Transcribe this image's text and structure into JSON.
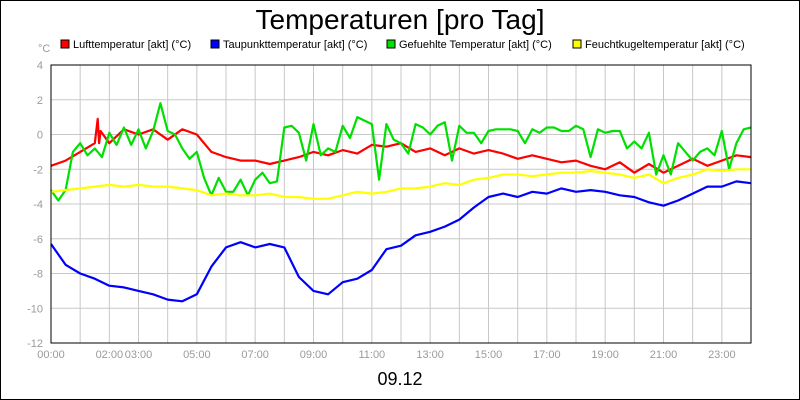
{
  "chart_data": {
    "type": "line",
    "title": "Temperaturen [pro Tag]",
    "y_unit": "°C",
    "xlabel": "09.12",
    "ylim": [
      -12,
      4
    ],
    "y_ticks": [
      "4",
      "2",
      "0",
      "-2",
      "-4",
      "-6",
      "-8",
      "-10",
      "-12"
    ],
    "x_range_hours": [
      0,
      24
    ],
    "x_ticks": [
      {
        "t": 0,
        "label": "00:00"
      },
      {
        "t": 2,
        "label": "02:00"
      },
      {
        "t": 3,
        "label": "03:00"
      },
      {
        "t": 5,
        "label": "05:00"
      },
      {
        "t": 7,
        "label": "07:00"
      },
      {
        "t": 9,
        "label": "09:00"
      },
      {
        "t": 11,
        "label": "11:00"
      },
      {
        "t": 13,
        "label": "13:00"
      },
      {
        "t": 15,
        "label": "15:00"
      },
      {
        "t": 17,
        "label": "17:00"
      },
      {
        "t": 19,
        "label": "19:00"
      },
      {
        "t": 21,
        "label": "21:00"
      },
      {
        "t": 23,
        "label": "23:00"
      }
    ],
    "grid": true,
    "legend_position": "top",
    "x_unit": "hours",
    "series": [
      {
        "name": "Lufttemperatur [akt] (°C)",
        "color": "#ff0000",
        "x": [
          0,
          0.5,
          1,
          1.5,
          1.6,
          1.65,
          1.7,
          2,
          2.5,
          3,
          3.5,
          4,
          4.5,
          5,
          5.5,
          6,
          6.5,
          7,
          7.5,
          8,
          8.5,
          9,
          9.5,
          10,
          10.5,
          11,
          11.5,
          12,
          12.5,
          13,
          13.5,
          14,
          14.5,
          15,
          15.5,
          16,
          16.5,
          17,
          17.5,
          18,
          18.5,
          19,
          19.5,
          20,
          20.5,
          21,
          21.5,
          22,
          22.5,
          23,
          23.5,
          24
        ],
        "y": [
          -1.8,
          -1.5,
          -1.0,
          -0.5,
          0.9,
          -0.5,
          0.2,
          -0.5,
          0.3,
          0.0,
          0.3,
          -0.3,
          0.3,
          0.0,
          -1.0,
          -1.3,
          -1.5,
          -1.5,
          -1.7,
          -1.5,
          -1.3,
          -1.0,
          -1.2,
          -0.9,
          -1.1,
          -0.6,
          -0.7,
          -0.5,
          -1.0,
          -0.8,
          -1.2,
          -0.8,
          -1.1,
          -0.9,
          -1.1,
          -1.4,
          -1.2,
          -1.4,
          -1.6,
          -1.5,
          -1.8,
          -2.0,
          -1.6,
          -2.2,
          -1.7,
          -2.2,
          -1.8,
          -1.4,
          -1.8,
          -1.5,
          -1.2,
          -1.3
        ]
      },
      {
        "name": "Taupunkttemperatur [akt] (°C)",
        "color": "#0000ff",
        "x": [
          0,
          0.5,
          1,
          1.5,
          2,
          2.5,
          3,
          3.5,
          4,
          4.5,
          5,
          5.5,
          6,
          6.5,
          7,
          7.5,
          8,
          8.5,
          9,
          9.5,
          10,
          10.5,
          11,
          11.5,
          12,
          12.5,
          13,
          13.5,
          14,
          14.5,
          15,
          15.5,
          16,
          16.5,
          17,
          17.5,
          18,
          18.5,
          19,
          19.5,
          20,
          20.5,
          21,
          21.5,
          22,
          22.5,
          23,
          23.5,
          24
        ],
        "y": [
          -6.3,
          -7.5,
          -8.0,
          -8.3,
          -8.7,
          -8.8,
          -9.0,
          -9.2,
          -9.5,
          -9.6,
          -9.2,
          -7.6,
          -6.5,
          -6.2,
          -6.5,
          -6.3,
          -6.5,
          -8.2,
          -9.0,
          -9.2,
          -8.5,
          -8.3,
          -7.8,
          -6.6,
          -6.4,
          -5.8,
          -5.6,
          -5.3,
          -4.9,
          -4.2,
          -3.6,
          -3.4,
          -3.6,
          -3.3,
          -3.4,
          -3.1,
          -3.3,
          -3.2,
          -3.3,
          -3.5,
          -3.6,
          -3.9,
          -4.1,
          -3.8,
          -3.4,
          -3.0,
          -3.0,
          -2.7,
          -2.8
        ]
      },
      {
        "name": "Gefuehlte Temperatur [akt] (°C)",
        "color": "#00e000",
        "x": [
          0,
          0.25,
          0.5,
          0.75,
          1,
          1.25,
          1.5,
          1.75,
          2,
          2.25,
          2.5,
          2.75,
          3,
          3.25,
          3.5,
          3.75,
          4,
          4.25,
          4.5,
          4.75,
          5,
          5.25,
          5.5,
          5.75,
          6,
          6.25,
          6.5,
          6.75,
          7,
          7.25,
          7.5,
          7.75,
          8,
          8.25,
          8.5,
          8.75,
          9,
          9.25,
          9.5,
          9.75,
          10,
          10.25,
          10.5,
          10.75,
          11,
          11.25,
          11.5,
          11.75,
          12,
          12.25,
          12.5,
          12.75,
          13,
          13.25,
          13.5,
          13.75,
          14,
          14.25,
          14.5,
          14.75,
          15,
          15.25,
          15.5,
          15.75,
          16,
          16.25,
          16.5,
          16.75,
          17,
          17.25,
          17.5,
          17.75,
          18,
          18.25,
          18.5,
          18.75,
          19,
          19.25,
          19.5,
          19.75,
          20,
          20.25,
          20.5,
          20.75,
          21,
          21.25,
          21.5,
          21.75,
          22,
          22.25,
          22.5,
          22.75,
          23,
          23.25,
          23.5,
          23.75,
          24
        ],
        "y": [
          -3.2,
          -3.8,
          -3.2,
          -1.0,
          -0.5,
          -1.2,
          -0.8,
          -1.3,
          0.1,
          -0.6,
          0.4,
          -0.6,
          0.3,
          -0.8,
          0.2,
          1.8,
          0.2,
          0.0,
          -0.8,
          -1.4,
          -1.0,
          -2.5,
          -3.5,
          -2.5,
          -3.3,
          -3.3,
          -2.6,
          -3.5,
          -2.6,
          -2.2,
          -2.8,
          -2.7,
          0.4,
          0.5,
          0.1,
          -1.5,
          0.6,
          -1.2,
          -0.8,
          -1.0,
          0.5,
          -0.2,
          1.0,
          0.8,
          0.6,
          -2.6,
          0.6,
          -0.3,
          -0.5,
          -1.1,
          0.6,
          0.4,
          0.0,
          0.5,
          0.7,
          -1.5,
          0.5,
          0.1,
          0.1,
          -0.5,
          0.2,
          0.3,
          0.3,
          0.3,
          0.2,
          -0.5,
          0.3,
          0.1,
          0.4,
          0.4,
          0.2,
          0.2,
          0.5,
          0.3,
          -1.3,
          0.3,
          0.1,
          0.2,
          0.2,
          -0.8,
          -0.4,
          -0.8,
          0.1,
          -2.3,
          -1.2,
          -2.3,
          -0.5,
          -1.0,
          -1.5,
          -1.0,
          -0.8,
          -1.2,
          0.2,
          -2.0,
          -0.5,
          0.3,
          0.4
        ]
      },
      {
        "name": "Feuchtkugeltemperatur [akt] (°C)",
        "color": "#ffff00",
        "x": [
          0,
          0.5,
          1,
          1.5,
          2,
          2.5,
          3,
          3.5,
          4,
          4.5,
          5,
          5.5,
          6,
          6.5,
          7,
          7.5,
          8,
          8.5,
          9,
          9.5,
          10,
          10.5,
          11,
          11.5,
          12,
          12.5,
          13,
          13.5,
          14,
          14.5,
          15,
          15.5,
          16,
          16.5,
          17,
          17.5,
          18,
          18.5,
          19,
          19.5,
          20,
          20.5,
          21,
          21.5,
          22,
          22.5,
          23,
          23.5,
          24
        ],
        "y": [
          -3.3,
          -3.2,
          -3.1,
          -3.0,
          -2.9,
          -3.0,
          -2.9,
          -3.0,
          -3.0,
          -3.1,
          -3.2,
          -3.5,
          -3.4,
          -3.5,
          -3.5,
          -3.4,
          -3.6,
          -3.6,
          -3.7,
          -3.7,
          -3.5,
          -3.3,
          -3.4,
          -3.3,
          -3.1,
          -3.1,
          -3.0,
          -2.8,
          -2.9,
          -2.6,
          -2.5,
          -2.3,
          -2.3,
          -2.4,
          -2.3,
          -2.2,
          -2.2,
          -2.1,
          -2.2,
          -2.3,
          -2.5,
          -2.3,
          -2.8,
          -2.5,
          -2.3,
          -2.0,
          -2.1,
          -2.0,
          -2.0
        ]
      }
    ]
  }
}
